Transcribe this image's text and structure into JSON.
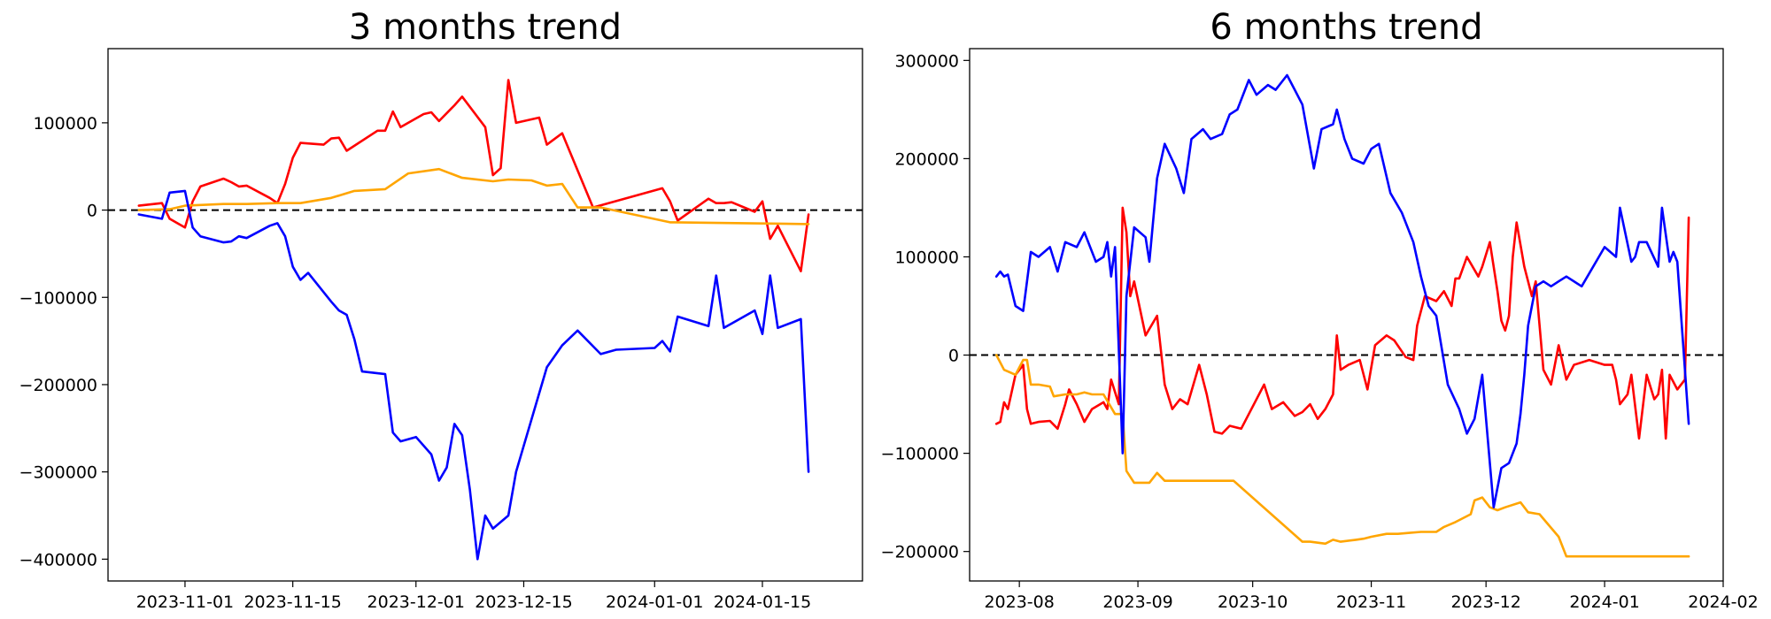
{
  "chart_data": [
    {
      "type": "line",
      "title": "3 months trend",
      "x_axis_type": "date",
      "xlim": [
        "2023-10-22",
        "2024-01-28"
      ],
      "ylim": [
        -425000,
        185000
      ],
      "x_ticks": [
        "2023-11-01",
        "2023-11-15",
        "2023-12-01",
        "2023-12-15",
        "2024-01-01",
        "2024-01-15"
      ],
      "y_ticks": [
        -400000,
        -300000,
        -200000,
        -100000,
        0,
        100000
      ],
      "reference_line": {
        "y": 0,
        "style": "dashed",
        "color": "#000000"
      },
      "grid": false,
      "series": [
        {
          "color": "#ff0000",
          "x": [
            "2023-10-26",
            "2023-10-29",
            "2023-10-30",
            "2023-11-01",
            "2023-11-02",
            "2023-11-03",
            "2023-11-06",
            "2023-11-07",
            "2023-11-08",
            "2023-11-09",
            "2023-11-12",
            "2023-11-13",
            "2023-11-14",
            "2023-11-15",
            "2023-11-16",
            "2023-11-19",
            "2023-11-20",
            "2023-11-21",
            "2023-11-22",
            "2023-11-26",
            "2023-11-27",
            "2023-11-28",
            "2023-11-29",
            "2023-12-02",
            "2023-12-03",
            "2023-12-04",
            "2023-12-06",
            "2023-12-07",
            "2023-12-10",
            "2023-12-11",
            "2023-12-12",
            "2023-12-13",
            "2023-12-14",
            "2023-12-17",
            "2023-12-18",
            "2023-12-20",
            "2023-12-24",
            "2024-01-02",
            "2024-01-03",
            "2024-01-04",
            "2024-01-08",
            "2024-01-09",
            "2024-01-10",
            "2024-01-11",
            "2024-01-14",
            "2024-01-15",
            "2024-01-16",
            "2024-01-17",
            "2024-01-20",
            "2024-01-21"
          ],
          "values": [
            5000,
            8000,
            -10000,
            -20000,
            10000,
            27000,
            36000,
            32000,
            27000,
            28000,
            14000,
            8000,
            30000,
            60000,
            77000,
            75000,
            82000,
            83000,
            68000,
            91000,
            91000,
            113000,
            95000,
            110000,
            112000,
            102000,
            120000,
            130000,
            95000,
            40000,
            48000,
            149000,
            100000,
            106000,
            75000,
            88000,
            3000,
            25000,
            10000,
            -12000,
            13000,
            8000,
            8000,
            9000,
            -2000,
            10000,
            -33000,
            -18000,
            -70000,
            -5000
          ]
        },
        {
          "color": "#ffa500",
          "x": [
            "2023-10-26",
            "2023-10-30",
            "2023-11-01",
            "2023-11-06",
            "2023-11-09",
            "2023-11-13",
            "2023-11-16",
            "2023-11-20",
            "2023-11-23",
            "2023-11-27",
            "2023-11-30",
            "2023-12-04",
            "2023-12-07",
            "2023-12-11",
            "2023-12-13",
            "2023-12-16",
            "2023-12-18",
            "2023-12-20",
            "2023-12-22",
            "2023-12-25",
            "2024-01-03",
            "2024-01-21"
          ],
          "values": [
            0,
            1000,
            5000,
            7000,
            7000,
            8000,
            8000,
            14000,
            22000,
            24000,
            42000,
            47000,
            37000,
            33000,
            35000,
            34000,
            28000,
            30000,
            3000,
            3000,
            -14000,
            -16000
          ]
        },
        {
          "color": "#0000ff",
          "x": [
            "2023-10-26",
            "2023-10-29",
            "2023-10-30",
            "2023-11-01",
            "2023-11-02",
            "2023-11-03",
            "2023-11-06",
            "2023-11-07",
            "2023-11-08",
            "2023-11-09",
            "2023-11-12",
            "2023-11-13",
            "2023-11-14",
            "2023-11-15",
            "2023-11-16",
            "2023-11-17",
            "2023-11-20",
            "2023-11-21",
            "2023-11-22",
            "2023-11-23",
            "2023-11-24",
            "2023-11-27",
            "2023-11-28",
            "2023-11-29",
            "2023-12-01",
            "2023-12-03",
            "2023-12-04",
            "2023-12-05",
            "2023-12-06",
            "2023-12-07",
            "2023-12-08",
            "2023-12-09",
            "2023-12-10",
            "2023-12-11",
            "2023-12-13",
            "2023-12-14",
            "2023-12-15",
            "2023-12-18",
            "2023-12-20",
            "2023-12-22",
            "2023-12-25",
            "2023-12-27",
            "2024-01-01",
            "2024-01-02",
            "2024-01-03",
            "2024-01-04",
            "2024-01-08",
            "2024-01-09",
            "2024-01-10",
            "2024-01-11",
            "2024-01-14",
            "2024-01-15",
            "2024-01-16",
            "2024-01-17",
            "2024-01-20",
            "2024-01-21"
          ],
          "values": [
            -5000,
            -10000,
            20000,
            22000,
            -20000,
            -30000,
            -37000,
            -36000,
            -30000,
            -32000,
            -18000,
            -15000,
            -30000,
            -65000,
            -80000,
            -72000,
            -105000,
            -115000,
            -120000,
            -148000,
            -185000,
            -188000,
            -255000,
            -265000,
            -260000,
            -280000,
            -310000,
            -295000,
            -245000,
            -258000,
            -320000,
            -400000,
            -350000,
            -365000,
            -350000,
            -300000,
            -270000,
            -180000,
            -155000,
            -138000,
            -165000,
            -160000,
            -158000,
            -150000,
            -162000,
            -122000,
            -133000,
            -75000,
            -135000,
            -130000,
            -115000,
            -142000,
            -75000,
            -135000,
            -125000,
            -300000
          ]
        }
      ]
    },
    {
      "type": "line",
      "title": "6 months trend",
      "x_axis_type": "date",
      "xlim": [
        "2023-07-19",
        "2024-02-01"
      ],
      "ylim": [
        -230000,
        312000
      ],
      "x_ticks": [
        "2023-08",
        "2023-09",
        "2023-10",
        "2023-11",
        "2023-12",
        "2024-01",
        "2024-02"
      ],
      "y_ticks": [
        -200000,
        -100000,
        0,
        100000,
        200000,
        300000
      ],
      "reference_line": {
        "y": 0,
        "style": "dashed",
        "color": "#000000"
      },
      "grid": false,
      "series": [
        {
          "color": "#ff0000",
          "x": [
            "2023-07-26",
            "2023-07-27",
            "2023-07-28",
            "2023-07-29",
            "2023-07-31",
            "2023-08-02",
            "2023-08-03",
            "2023-08-04",
            "2023-08-06",
            "2023-08-09",
            "2023-08-11",
            "2023-08-13",
            "2023-08-14",
            "2023-08-16",
            "2023-08-18",
            "2023-08-20",
            "2023-08-23",
            "2023-08-24",
            "2023-08-25",
            "2023-08-27",
            "2023-08-28",
            "2023-08-29",
            "2023-08-30",
            "2023-08-31",
            "2023-09-03",
            "2023-09-06",
            "2023-09-08",
            "2023-09-10",
            "2023-09-12",
            "2023-09-14",
            "2023-09-17",
            "2023-09-19",
            "2023-09-21",
            "2023-09-23",
            "2023-09-25",
            "2023-09-28",
            "2023-10-04",
            "2023-10-06",
            "2023-10-09",
            "2023-10-12",
            "2023-10-14",
            "2023-10-16",
            "2023-10-18",
            "2023-10-20",
            "2023-10-22",
            "2023-10-23",
            "2023-10-24",
            "2023-10-26",
            "2023-10-29",
            "2023-10-31",
            "2023-11-02",
            "2023-11-05",
            "2023-11-07",
            "2023-11-10",
            "2023-11-12",
            "2023-11-13",
            "2023-11-15",
            "2023-11-18",
            "2023-11-19",
            "2023-11-20",
            "2023-11-22",
            "2023-11-23",
            "2023-11-24",
            "2023-11-26",
            "2023-11-29",
            "2023-11-30",
            "2023-12-02",
            "2023-12-04",
            "2023-12-05",
            "2023-12-06",
            "2023-12-07",
            "2023-12-08",
            "2023-12-09",
            "2023-12-11",
            "2023-12-13",
            "2023-12-14",
            "2023-12-16",
            "2023-12-18",
            "2023-12-20",
            "2023-12-22",
            "2023-12-24",
            "2023-12-28",
            "2024-01-01",
            "2024-01-03",
            "2024-01-04",
            "2024-01-05",
            "2024-01-07",
            "2024-01-08",
            "2024-01-10",
            "2024-01-12",
            "2024-01-14",
            "2024-01-15",
            "2024-01-16",
            "2024-01-17",
            "2024-01-18",
            "2024-01-20",
            "2024-01-22",
            "2024-01-23"
          ],
          "values": [
            -70000,
            -68000,
            -48000,
            -55000,
            -20000,
            -10000,
            -55000,
            -70000,
            -68000,
            -67000,
            -75000,
            -50000,
            -35000,
            -50000,
            -68000,
            -55000,
            -48000,
            -55000,
            -25000,
            -50000,
            150000,
            125000,
            60000,
            75000,
            20000,
            40000,
            -30000,
            -55000,
            -45000,
            -50000,
            -10000,
            -40000,
            -78000,
            -80000,
            -72000,
            -75000,
            -30000,
            -55000,
            -48000,
            -62000,
            -58000,
            -50000,
            -65000,
            -55000,
            -40000,
            20000,
            -15000,
            -10000,
            -5000,
            -35000,
            10000,
            20000,
            15000,
            -2000,
            -5000,
            30000,
            60000,
            55000,
            60000,
            65000,
            50000,
            78000,
            78000,
            100000,
            80000,
            90000,
            115000,
            65000,
            35000,
            25000,
            40000,
            100000,
            135000,
            90000,
            60000,
            75000,
            -15000,
            -30000,
            10000,
            -25000,
            -10000,
            -5000,
            -10000,
            -10000,
            -25000,
            -50000,
            -40000,
            -20000,
            -85000,
            -20000,
            -45000,
            -40000,
            -15000,
            -85000,
            -20000,
            -35000,
            -25000,
            140000
          ]
        },
        {
          "color": "#ffa500",
          "x": [
            "2023-07-26",
            "2023-07-28",
            "2023-07-31",
            "2023-08-02",
            "2023-08-03",
            "2023-08-04",
            "2023-08-06",
            "2023-08-09",
            "2023-08-10",
            "2023-08-13",
            "2023-08-16",
            "2023-08-18",
            "2023-08-20",
            "2023-08-23",
            "2023-08-26",
            "2023-08-28",
            "2023-08-29",
            "2023-08-31",
            "2023-09-04",
            "2023-09-06",
            "2023-09-08",
            "2023-09-26",
            "2023-10-14",
            "2023-10-16",
            "2023-10-20",
            "2023-10-22",
            "2023-10-24",
            "2023-10-28",
            "2023-10-30",
            "2023-11-01",
            "2023-11-05",
            "2023-11-08",
            "2023-11-11",
            "2023-11-14",
            "2023-11-18",
            "2023-11-20",
            "2023-11-23",
            "2023-11-27",
            "2023-11-28",
            "2023-11-30",
            "2023-12-02",
            "2023-12-04",
            "2023-12-06",
            "2023-12-10",
            "2023-12-12",
            "2023-12-15",
            "2023-12-20",
            "2023-12-22",
            "2024-01-08",
            "2024-01-15",
            "2024-01-23"
          ],
          "values": [
            0,
            -15000,
            -20000,
            -5000,
            -5000,
            -30000,
            -30000,
            -32000,
            -42000,
            -40000,
            -40000,
            -38000,
            -40000,
            -40000,
            -60000,
            -60000,
            -118000,
            -130000,
            -130000,
            -120000,
            -128000,
            -128000,
            -190000,
            -190000,
            -192000,
            -188000,
            -190000,
            -188000,
            -187000,
            -185000,
            -182000,
            -182000,
            -181000,
            -180000,
            -180000,
            -175000,
            -170000,
            -162000,
            -148000,
            -145000,
            -155000,
            -158000,
            -155000,
            -150000,
            -160000,
            -162000,
            -185000,
            -205000,
            -205000,
            -205000,
            -205000
          ]
        },
        {
          "color": "#0000ff",
          "x": [
            "2023-07-26",
            "2023-07-27",
            "2023-07-28",
            "2023-07-29",
            "2023-07-31",
            "2023-08-02",
            "2023-08-04",
            "2023-08-06",
            "2023-08-09",
            "2023-08-11",
            "2023-08-13",
            "2023-08-16",
            "2023-08-18",
            "2023-08-21",
            "2023-08-23",
            "2023-08-24",
            "2023-08-25",
            "2023-08-26",
            "2023-08-28",
            "2023-08-29",
            "2023-08-31",
            "2023-09-03",
            "2023-09-04",
            "2023-09-06",
            "2023-09-08",
            "2023-09-11",
            "2023-09-13",
            "2023-09-15",
            "2023-09-18",
            "2023-09-20",
            "2023-09-23",
            "2023-09-25",
            "2023-09-27",
            "2023-09-30",
            "2023-10-02",
            "2023-10-05",
            "2023-10-07",
            "2023-10-10",
            "2023-10-12",
            "2023-10-14",
            "2023-10-17",
            "2023-10-19",
            "2023-10-22",
            "2023-10-23",
            "2023-10-25",
            "2023-10-27",
            "2023-10-30",
            "2023-11-01",
            "2023-11-03",
            "2023-11-06",
            "2023-11-09",
            "2023-11-12",
            "2023-11-14",
            "2023-11-16",
            "2023-11-18",
            "2023-11-21",
            "2023-11-24",
            "2023-11-26",
            "2023-11-28",
            "2023-11-30",
            "2023-12-03",
            "2023-12-05",
            "2023-12-07",
            "2023-12-09",
            "2023-12-10",
            "2023-12-11",
            "2023-12-12",
            "2023-12-14",
            "2023-12-16",
            "2023-12-18",
            "2023-12-20",
            "2023-12-22",
            "2023-12-26",
            "2024-01-01",
            "2024-01-04",
            "2024-01-05",
            "2024-01-08",
            "2024-01-09",
            "2024-01-10",
            "2024-01-12",
            "2024-01-15",
            "2024-01-16",
            "2024-01-18",
            "2024-01-19",
            "2024-01-20",
            "2024-01-23"
          ],
          "values": [
            80000,
            85000,
            80000,
            82000,
            50000,
            45000,
            105000,
            100000,
            110000,
            85000,
            115000,
            110000,
            125000,
            95000,
            100000,
            115000,
            80000,
            110000,
            -100000,
            60000,
            130000,
            120000,
            95000,
            180000,
            215000,
            190000,
            165000,
            220000,
            230000,
            220000,
            225000,
            245000,
            250000,
            280000,
            265000,
            275000,
            270000,
            285000,
            270000,
            255000,
            190000,
            230000,
            235000,
            250000,
            220000,
            200000,
            195000,
            210000,
            215000,
            165000,
            145000,
            115000,
            80000,
            50000,
            40000,
            -30000,
            -55000,
            -80000,
            -65000,
            -20000,
            -155000,
            -115000,
            -110000,
            -90000,
            -60000,
            -20000,
            30000,
            70000,
            75000,
            70000,
            75000,
            80000,
            70000,
            110000,
            100000,
            150000,
            95000,
            100000,
            115000,
            115000,
            90000,
            150000,
            95000,
            105000,
            95000,
            -70000
          ]
        }
      ]
    }
  ]
}
